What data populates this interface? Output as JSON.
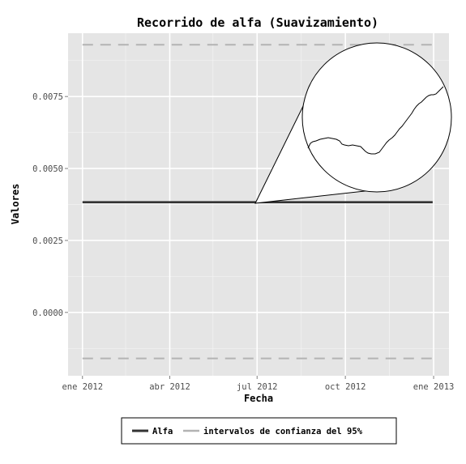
{
  "chart_data": {
    "type": "line",
    "title": "Recorrido de alfa (Suavizamiento)",
    "xlabel": "Fecha",
    "ylabel": "Valores",
    "x_ticks": [
      "ene 2012",
      "abr 2012",
      "jul 2012",
      "oct 2012",
      "ene 2013"
    ],
    "y_ticks": [
      "0.0000",
      "0.0025",
      "0.0050",
      "0.0075"
    ],
    "xlim": [
      "2011-12-17",
      "2013-01-17"
    ],
    "ylim": [
      -0.0022,
      0.0097
    ],
    "grid": true,
    "legend_position": "bottom",
    "series": [
      {
        "name": "Alfa",
        "color": "#333333",
        "style": "solid",
        "x": [
          "2012-01-01",
          "2012-12-31"
        ],
        "values": [
          0.00383,
          0.00383
        ]
      },
      {
        "name": "intervalos de confianza del 95%",
        "color": "#b3b3b3",
        "style": "dashed",
        "x": [
          "2012-01-01",
          "2012-12-31"
        ],
        "upper": [
          0.0093,
          0.0093
        ],
        "lower": [
          -0.0016,
          -0.0016
        ]
      }
    ],
    "annotation": "zoom-inset"
  }
}
